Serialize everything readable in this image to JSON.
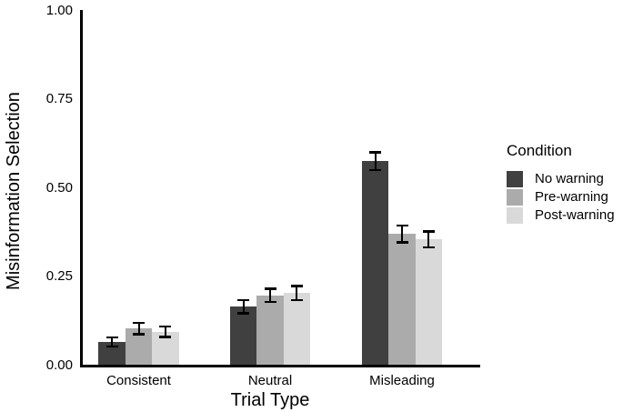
{
  "chart_data": {
    "type": "bar",
    "title": "",
    "xlabel": "Trial Type",
    "ylabel": "Misinformation Selection",
    "categories": [
      "Consistent",
      "Neutral",
      "Misleading"
    ],
    "series": [
      {
        "name": "No warning",
        "color": "#404040",
        "values": [
          0.066,
          0.165,
          0.576
        ],
        "errors": [
          0.016,
          0.022,
          0.028
        ]
      },
      {
        "name": "Pre-warning",
        "color": "#ABABAB",
        "values": [
          0.103,
          0.197,
          0.37
        ],
        "errors": [
          0.019,
          0.022,
          0.027
        ]
      },
      {
        "name": "Post-warning",
        "color": "#D9D9D9",
        "values": [
          0.094,
          0.204,
          0.355
        ],
        "errors": [
          0.018,
          0.023,
          0.026
        ]
      }
    ],
    "ylim": [
      0.0,
      1.0
    ],
    "yticks": [
      0.0,
      0.25,
      0.5,
      0.75,
      1.0
    ],
    "ytick_labels": [
      "0.00",
      "0.25",
      "0.50",
      "0.75",
      "1.00"
    ],
    "error_bars": true,
    "grid": false,
    "legend": {
      "title": "Condition",
      "position": "right"
    },
    "colors": {
      "background": "#ffffff",
      "axis": "#000000",
      "text": "#000000",
      "error_bar": "#000000"
    }
  }
}
